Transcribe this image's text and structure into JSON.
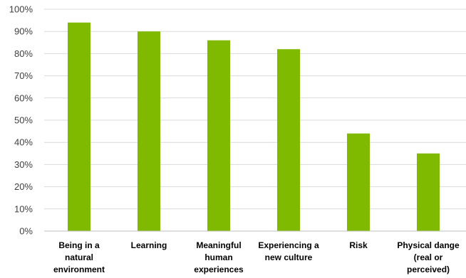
{
  "colors": {
    "bar": "#7fba00",
    "grid": "#d9d9d9",
    "axis": "#bfbfbf"
  },
  "chart_data": {
    "type": "bar",
    "title": "",
    "xlabel": "",
    "ylabel": "",
    "ylim": [
      0,
      100
    ],
    "y_ticks": [
      "0%",
      "10%",
      "20%",
      "30%",
      "40%",
      "50%",
      "60%",
      "70%",
      "80%",
      "90%",
      "100%"
    ],
    "grid": true,
    "categories": [
      [
        "Being in a",
        "natural",
        "environment"
      ],
      [
        "Learning"
      ],
      [
        "Meaningful",
        "human",
        "experiences"
      ],
      [
        "Experiencing a",
        "new culture"
      ],
      [
        "Risk"
      ],
      [
        "Physical dange",
        "(real or",
        "perceived)"
      ]
    ],
    "values": [
      94,
      90,
      86,
      82,
      44,
      35
    ]
  }
}
